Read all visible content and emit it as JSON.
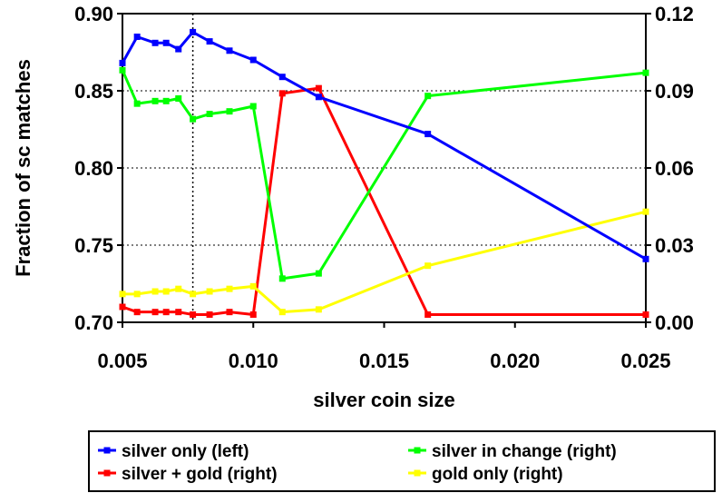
{
  "chart_data": {
    "type": "line",
    "xlabel": "silver coin size",
    "ylabel": "Fraction of sc matches",
    "xlim": [
      0.005,
      0.025
    ],
    "ylim_left": [
      0.7,
      0.9
    ],
    "ylim_right": [
      0.0,
      0.12
    ],
    "x_ticks": [
      "0.005",
      "0.010",
      "0.015",
      "0.020",
      "0.025"
    ],
    "y_left_ticks": [
      "0.70",
      "0.75",
      "0.80",
      "0.85",
      "0.90"
    ],
    "y_right_ticks": [
      "0.00",
      "0.03",
      "0.06",
      "0.09",
      "0.12"
    ],
    "grid": "horizontal dotted",
    "reference_line_x": 0.00769,
    "legend_position": "bottom",
    "series": [
      {
        "name": "silver only (left)",
        "axis": "left",
        "color": "#0000ff",
        "x": [
          0.005,
          0.00556,
          0.00625,
          0.00667,
          0.00714,
          0.00769,
          0.00833,
          0.00909,
          0.01,
          0.01111,
          0.0125,
          0.01667,
          0.025
        ],
        "y": [
          0.868,
          0.885,
          0.881,
          0.881,
          0.877,
          0.888,
          0.882,
          0.876,
          0.87,
          0.859,
          0.846,
          0.822,
          0.741
        ]
      },
      {
        "name": "silver in change (right)",
        "axis": "right",
        "color": "#00ff00",
        "x": [
          0.005,
          0.00556,
          0.00625,
          0.00667,
          0.00714,
          0.00769,
          0.00833,
          0.00909,
          0.01,
          0.01111,
          0.0125,
          0.01667,
          0.025
        ],
        "y": [
          0.098,
          0.085,
          0.086,
          0.086,
          0.087,
          0.079,
          0.081,
          0.082,
          0.084,
          0.017,
          0.019,
          0.088,
          0.097
        ]
      },
      {
        "name": "silver + gold (right)",
        "axis": "right",
        "color": "#ff0000",
        "x": [
          0.005,
          0.00556,
          0.00625,
          0.00667,
          0.00714,
          0.00769,
          0.00833,
          0.00909,
          0.01,
          0.01111,
          0.0125,
          0.01667,
          0.025
        ],
        "y": [
          0.006,
          0.004,
          0.004,
          0.004,
          0.004,
          0.003,
          0.003,
          0.004,
          0.003,
          0.089,
          0.091,
          0.003,
          0.003
        ]
      },
      {
        "name": "gold only (right)",
        "axis": "right",
        "color": "#ffff00",
        "x": [
          0.005,
          0.00556,
          0.00625,
          0.00667,
          0.00714,
          0.00769,
          0.00833,
          0.00909,
          0.01,
          0.01111,
          0.0125,
          0.01667,
          0.025
        ],
        "y": [
          0.011,
          0.011,
          0.012,
          0.012,
          0.013,
          0.011,
          0.012,
          0.013,
          0.014,
          0.004,
          0.005,
          0.022,
          0.043
        ]
      }
    ]
  }
}
